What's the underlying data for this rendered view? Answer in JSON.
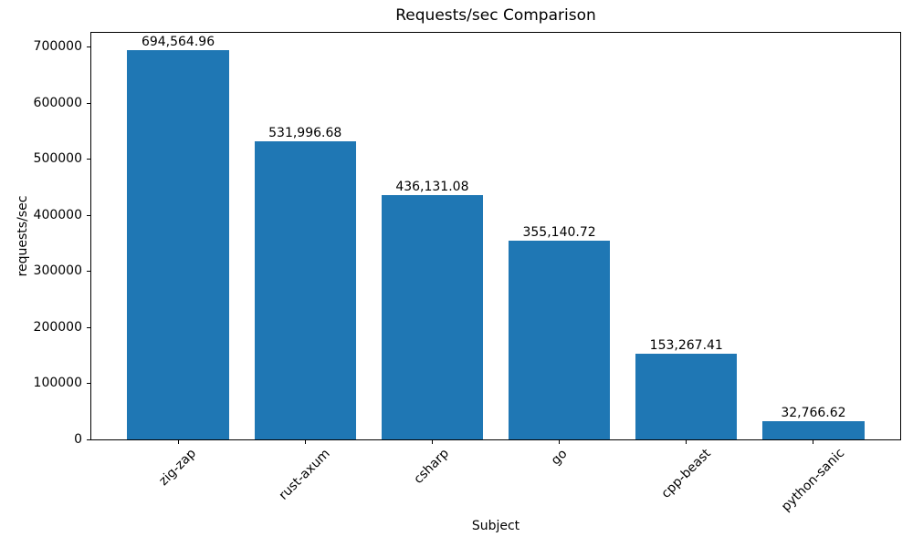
{
  "chart_data": {
    "type": "bar",
    "title": "Requests/sec Comparison",
    "xlabel": "Subject",
    "ylabel": "requests/sec",
    "categories": [
      "zig-zap",
      "rust-axum",
      "csharp",
      "go",
      "cpp-beast",
      "python-sanic"
    ],
    "values": [
      694564.96,
      531996.68,
      436131.08,
      355140.72,
      153267.41,
      32766.62
    ],
    "value_labels": [
      "694,564.96",
      "531,996.68",
      "436,131.08",
      "355,140.72",
      "153,267.41",
      "32,766.62"
    ],
    "yticks": [
      0,
      100000,
      200000,
      300000,
      400000,
      500000,
      600000,
      700000
    ],
    "ytick_labels": [
      "0",
      "100000",
      "200000",
      "300000",
      "400000",
      "500000",
      "600000",
      "700000"
    ],
    "ylim": [
      0,
      729293
    ],
    "bar_color": "#1f77b4",
    "text_color": "#000000",
    "grid": false,
    "legend": null,
    "x_tick_rotation_deg": 45
  }
}
